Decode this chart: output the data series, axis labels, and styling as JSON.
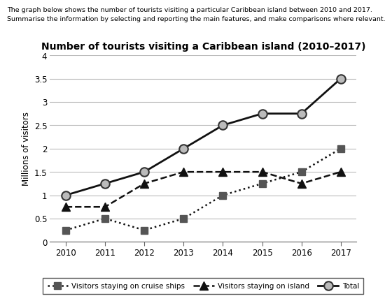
{
  "title": "Number of tourists visiting a Caribbean island (2010–2017)",
  "header_line1": "The graph below shows the number of tourists visiting a particular Caribbean island between 2010 and 2017.",
  "header_line2": "Summarise the information by selecting and reporting the main features, and make comparisons where relevant.",
  "ylabel": "Millions of visitors",
  "years": [
    2010,
    2011,
    2012,
    2013,
    2014,
    2015,
    2016,
    2017
  ],
  "cruise_ships": [
    0.25,
    0.5,
    0.25,
    0.5,
    1.0,
    1.25,
    1.5,
    2.0
  ],
  "on_island": [
    0.75,
    0.75,
    1.25,
    1.5,
    1.5,
    1.5,
    1.25,
    1.5
  ],
  "total": [
    1.0,
    1.25,
    1.5,
    2.0,
    2.5,
    2.75,
    2.75,
    3.5
  ],
  "ylim": [
    0,
    4
  ],
  "yticks": [
    0,
    0.5,
    1.0,
    1.5,
    2.0,
    2.5,
    3.0,
    3.5,
    4.0
  ],
  "line_color": "#111111",
  "total_marker_face": "#bbbbbb",
  "total_marker_edge": "#333333",
  "cruise_marker_color": "#555555",
  "island_marker_color": "#111111",
  "grid_color": "#bbbbbb"
}
